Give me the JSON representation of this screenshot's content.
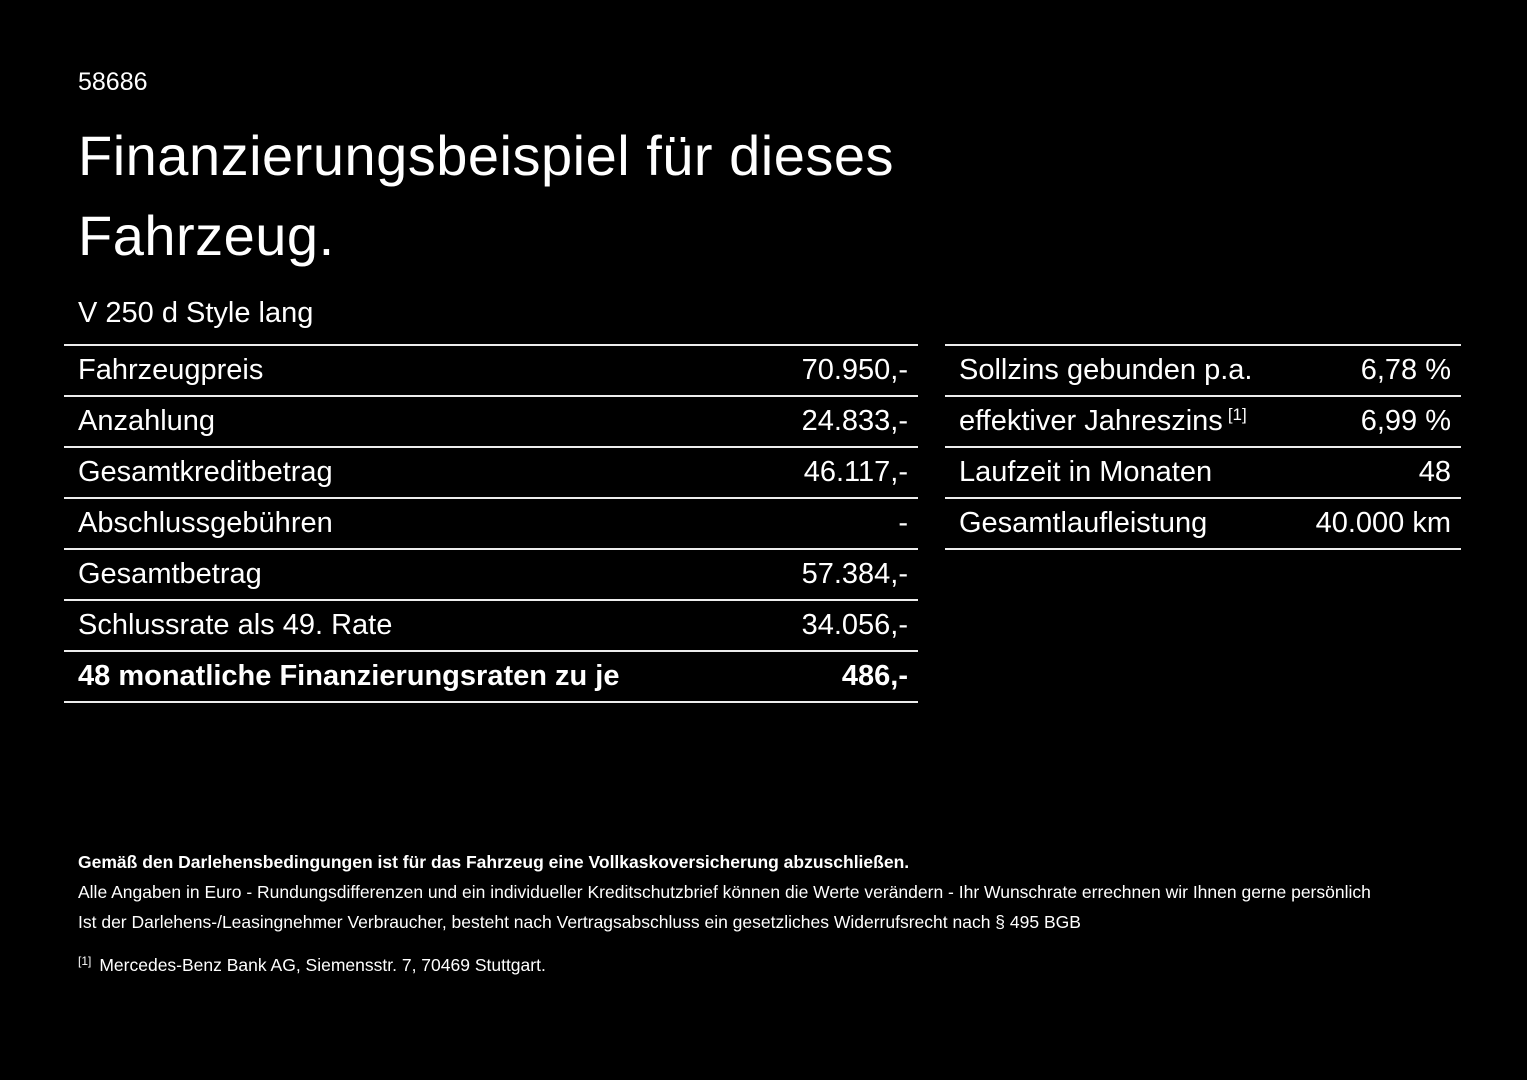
{
  "page": {
    "doc_id": "58686",
    "title_line1": "Finanzierungsbeispiel für dieses",
    "title_line2": "Fahrzeug.",
    "vehicle_name": "V 250 d Style lang"
  },
  "finance_table": {
    "rows": [
      {
        "label": "Fahrzeugpreis",
        "value": "70.950,-"
      },
      {
        "label": "Anzahlung",
        "value": "24.833,-"
      },
      {
        "label": "Gesamtkreditbetrag",
        "value": "46.117,-"
      },
      {
        "label": "Abschlussgebühren",
        "value": "-"
      },
      {
        "label": "Gesamtbetrag",
        "value": "57.384,-"
      },
      {
        "label": "Schlussrate als 49. Rate",
        "value": "34.056,-"
      }
    ],
    "highlight_row": {
      "label": "48 monatliche Finanzierungsraten zu je",
      "value": "486,-"
    }
  },
  "conditions_table": {
    "rows": [
      {
        "label": "Sollzins gebunden p.a.",
        "value": "6,78 %"
      },
      {
        "label": "effektiver Jahreszins",
        "footnote_marker": "[1]",
        "value": "6,99 %"
      },
      {
        "label": "Laufzeit in Monaten",
        "value": "48"
      },
      {
        "label": "Gesamtlaufleistung",
        "value": "40.000 km"
      }
    ]
  },
  "footer": {
    "bold_note": "Gemäß den Darlehensbedingungen ist für das Fahrzeug eine Vollkaskoversicherung abzuschließen.",
    "note_line1": "Alle Angaben in Euro - Rundungsdifferenzen und ein individueller Kreditschutzbrief können die Werte verändern - Ihr Wunschrate errechnen wir Ihnen gerne persönlich",
    "note_line2": "Ist der Darlehens-/Leasingnehmer Verbraucher, besteht nach Vertragsabschluss ein gesetzliches Widerrufsrecht nach § 495 BGB",
    "footnote_marker": "[1]",
    "footnote_text": "Mercedes-Benz Bank AG, Siemensstr. 7, 70469 Stuttgart."
  },
  "colors": {
    "background": "#000000",
    "text": "#ffffff",
    "divider": "#ededed"
  }
}
